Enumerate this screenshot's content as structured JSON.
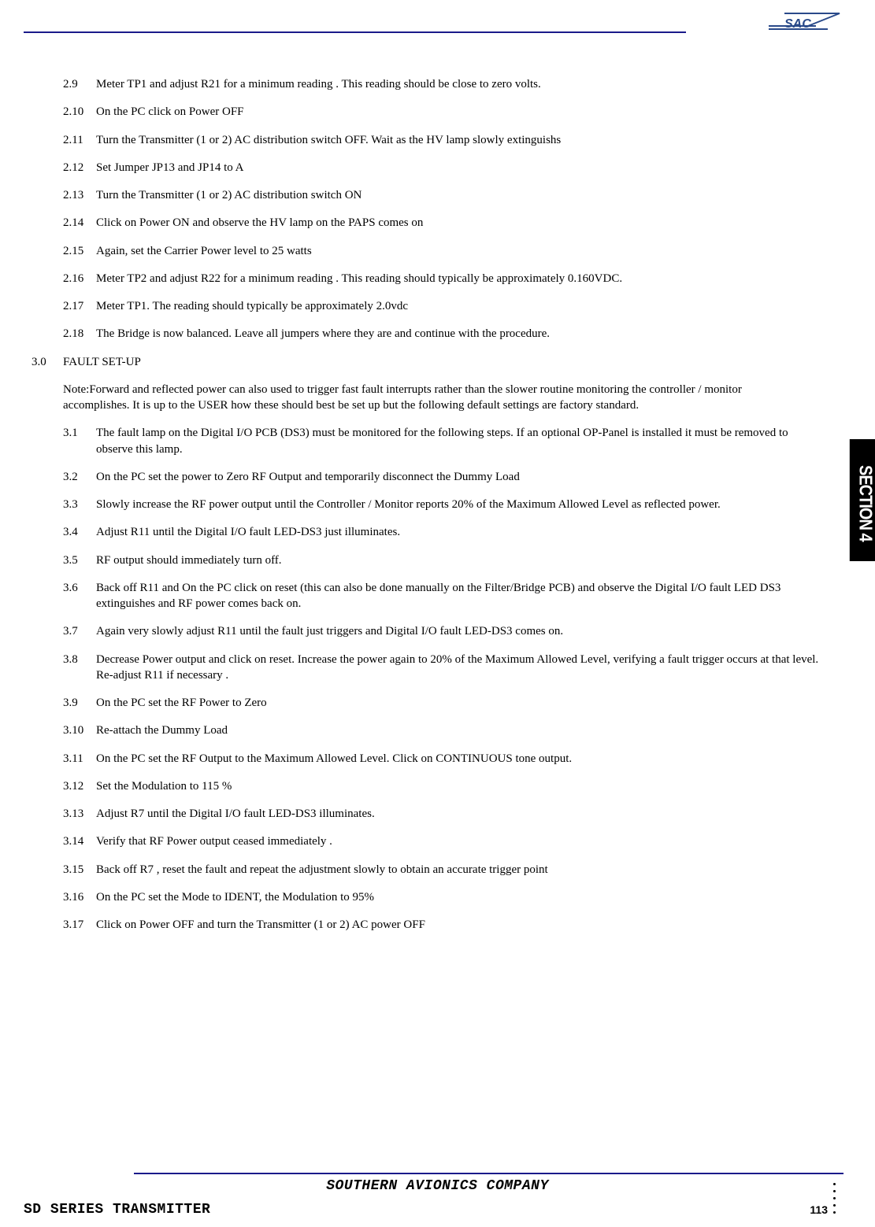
{
  "header": {
    "logo_text": "SAC",
    "logo_color": "#2a4a8a"
  },
  "section_tab": "SECTION 4",
  "items_top": [
    {
      "num": "2.9",
      "text": "Meter TP1 and adjust R21 for  a minimum reading . This reading should be close to zero volts."
    },
    {
      "num": "2.10",
      "text": " On the PC click on Power OFF"
    },
    {
      "num": "2.11",
      "text": "Turn the Transmitter (1 or 2) AC distribution switch OFF. Wait as the HV lamp slowly extinguishs"
    },
    {
      "num": "2.12",
      "text": "Set Jumper JP13 and JP14 to A"
    },
    {
      "num": "2.13",
      "text": "Turn the Transmitter (1 or 2) AC distribution switch ON"
    },
    {
      "num": "2.14",
      "text": "Click on Power ON and observe the HV lamp on the PAPS comes on"
    },
    {
      "num": "2.15",
      "text": "Again, set the Carrier Power level to 25 watts"
    },
    {
      "num": "2.16",
      "text": "Meter TP2 and adjust R22 for  a minimum reading . This reading should typically be approximately 0.160VDC."
    },
    {
      "num": "2.17",
      "text": "Meter TP1. The reading should typically be approximately 2.0vdc"
    },
    {
      "num": "2.18",
      "text": "The Bridge is now balanced. Leave all jumpers where they are and continue with  the procedure."
    }
  ],
  "section3": {
    "num": "3.0",
    "title": "FAULT SET-UP"
  },
  "note": "Note:Forward and reflected power can also used to trigger fast fault interrupts rather than the slower routine monitoring the controller / monitor accomplishes. It is up to the USER how these should best be set up but the following default settings are factory standard.",
  "items_bottom": [
    {
      "num": "3.1",
      "text": "The fault lamp on the Digital I/O PCB (DS3) must be monitored for the following steps. If an optional OP-Panel is installed it must be removed to observe this lamp."
    },
    {
      "num": "3.2",
      "text": "On the PC set the power to Zero RF Output and temporarily disconnect the Dummy Load"
    },
    {
      "num": "3.3",
      "text": "Slowly increase the RF power output until the Controller / Monitor reports 20% of the Maximum Allowed  Level as reflected power."
    },
    {
      "num": "3.4",
      "text": "Adjust R11 until the Digital I/O fault LED-DS3 just illuminates."
    },
    {
      "num": "3.5",
      "text": "RF output should immediately turn off."
    },
    {
      "num": "3.6",
      "text": "Back off R11 and On the PC click on reset (this can also be done manually on the Filter/Bridge PCB) and observe the Digital I/O fault LED DS3 extinguishes and  RF power comes back on."
    },
    {
      "num": "3.7",
      "text": "Again  very slowly adjust R11 until the fault just triggers and Digital I/O fault LED-DS3 comes on."
    },
    {
      "num": "3.8",
      "text": "Decrease Power output and click on reset. Increase the power again to 20% of the Maximum Allowed  Level, verifying a fault trigger occurs at that level. Re-adjust R11 if necessary ."
    },
    {
      "num": "3.9",
      "text": "On the PC set the RF Power to Zero"
    },
    {
      "num": "3.10",
      "text": "Re-attach the Dummy Load"
    },
    {
      "num": "3.11",
      "text": "On the PC set the RF Output to the Maximum Allowed Level. Click on CONTINUOUS  tone output."
    },
    {
      "num": "3.12",
      "text": "Set the Modulation  to 115 %"
    },
    {
      "num": "3.13",
      "text": "Adjust R7 until the Digital I/O fault LED-DS3 illuminates."
    },
    {
      "num": "3.14",
      "text": " Verify that RF Power output ceased  immediately ."
    },
    {
      "num": "3.15",
      "text": "Back off R7 , reset the fault and repeat the adjustment slowly to obtain an accurate trigger point"
    },
    {
      "num": "3.16",
      "text": "On the PC set the Mode to IDENT, the Modulation to 95%"
    },
    {
      "num": "3.17",
      "text": "Click on Power OFF and turn the Transmitter (1 or 2) AC power OFF"
    }
  ],
  "footer": {
    "company": "SOUTHERN AVIONICS COMPANY",
    "series": "SD SERIES TRANSMITTER",
    "page": "113"
  }
}
